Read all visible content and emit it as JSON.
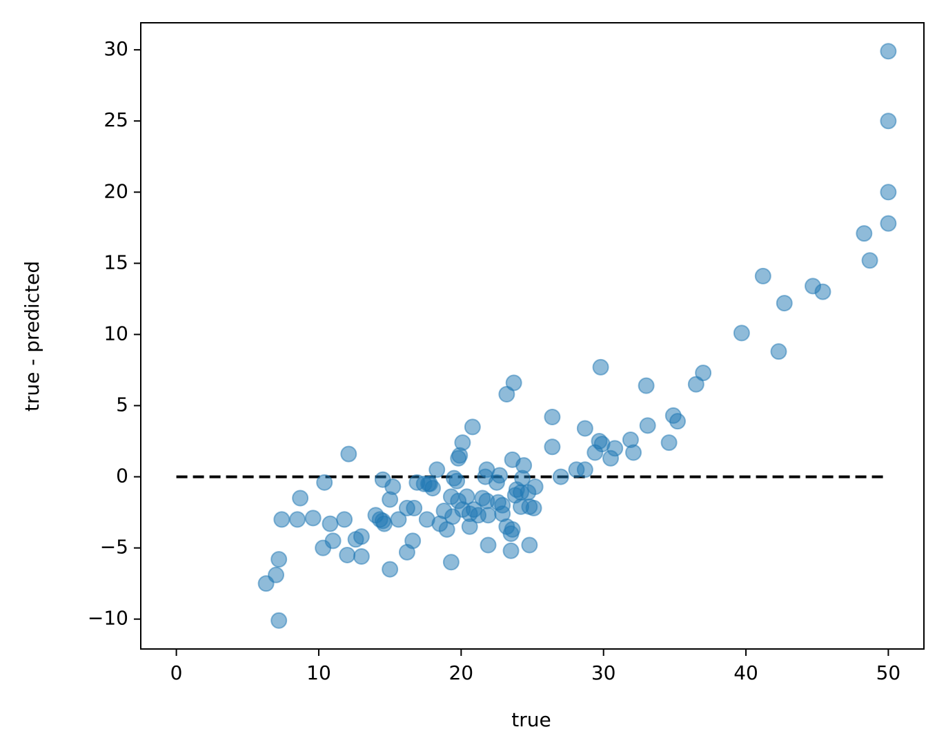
{
  "chart_data": {
    "type": "scatter",
    "xlabel": "true",
    "ylabel": "true - predicted",
    "xlim": [
      -2.5,
      52.5
    ],
    "ylim": [
      -12.1,
      31.9
    ],
    "xticks": [
      0,
      10,
      20,
      30,
      40,
      50
    ],
    "yticks": [
      {
        "value": -10,
        "label": "−10"
      },
      {
        "value": -5,
        "label": "−5"
      },
      0,
      5,
      10,
      15,
      20,
      25,
      30
    ],
    "color": "#1f77b4",
    "alpha": 0.5,
    "reference_line": {
      "x": [
        0,
        50
      ],
      "y": [
        0,
        0
      ],
      "color": "#000000",
      "style": "dashed"
    },
    "x": [
      50,
      50,
      50,
      50,
      48.3,
      48.7,
      41.2,
      44.7,
      45.4,
      42.7,
      39.7,
      42.3,
      29.8,
      37.0,
      36.5,
      33.0,
      23.7,
      23.2,
      34.9,
      35.2,
      33.1,
      26.4,
      20.8,
      28.7,
      29.7,
      29.9,
      31.9,
      34.6,
      20.1,
      26.4,
      30.8,
      29.4,
      32.1,
      30.5,
      12.1,
      19.8,
      19.9,
      23.6,
      24.4,
      21.8,
      18.3,
      28.1,
      28.7,
      22.7,
      27.0,
      21.7,
      14.5,
      19.5,
      19.7,
      24.3,
      10.4,
      16.9,
      17.4,
      17.7,
      17.8,
      22.5,
      15.2,
      18.0,
      25.2,
      24.7,
      23.9,
      24.2,
      23.8,
      8.7,
      15.0,
      19.3,
      19.8,
      20.4,
      21.5,
      21.8,
      22.6,
      22.9,
      24.2,
      18.8,
      20.1,
      20.9,
      20.6,
      16.2,
      16.7,
      24.8,
      25.1,
      22.9,
      21.2,
      21.9,
      19.4,
      14.0,
      14.3,
      14.5,
      14.6,
      15.6,
      17.6,
      7.4,
      8.5,
      9.6,
      11.8,
      10.8,
      18.5,
      19.0,
      20.6,
      23.2,
      23.6,
      23.5,
      13.0,
      12.6,
      11.0,
      16.6,
      10.3,
      21.9,
      24.8,
      23.5,
      12.0,
      13.0,
      16.2,
      19.3,
      15.0,
      7.2,
      7.0,
      6.3,
      7.2
    ],
    "values": [
      29.9,
      25.0,
      20.0,
      17.8,
      17.1,
      15.2,
      14.1,
      13.4,
      13.0,
      12.2,
      10.1,
      8.8,
      7.7,
      7.3,
      6.5,
      6.4,
      6.6,
      5.8,
      4.3,
      3.9,
      3.6,
      4.2,
      3.5,
      3.4,
      2.5,
      2.3,
      2.6,
      2.4,
      2.4,
      2.1,
      2.0,
      1.7,
      1.7,
      1.3,
      1.6,
      1.3,
      1.5,
      1.2,
      0.8,
      0.5,
      0.5,
      0.5,
      0.5,
      0.1,
      0,
      0,
      -0.2,
      -0.1,
      -0.3,
      -0.1,
      -0.4,
      -0.4,
      -0.5,
      -0.5,
      -0.5,
      -0.4,
      -0.7,
      -0.8,
      -0.7,
      -1.1,
      -0.9,
      -1.1,
      -1.3,
      -1.5,
      -1.6,
      -1.4,
      -1.7,
      -1.4,
      -1.5,
      -1.7,
      -1.8,
      -2.0,
      -2.1,
      -2.4,
      -2.3,
      -2.3,
      -2.6,
      -2.2,
      -2.2,
      -2.1,
      -2.2,
      -2.6,
      -2.7,
      -2.7,
      -2.8,
      -2.7,
      -3.0,
      -3.1,
      -3.3,
      -3.0,
      -3.0,
      -3.0,
      -3.0,
      -2.9,
      -3.0,
      -3.3,
      -3.3,
      -3.7,
      -3.5,
      -3.5,
      -3.7,
      -4.0,
      -4.2,
      -4.4,
      -4.5,
      -4.5,
      -5.0,
      -4.8,
      -4.8,
      -5.2,
      -5.5,
      -5.6,
      -5.3,
      -6.0,
      -6.5,
      -5.8,
      -6.9,
      -7.5,
      -10.1
    ]
  }
}
